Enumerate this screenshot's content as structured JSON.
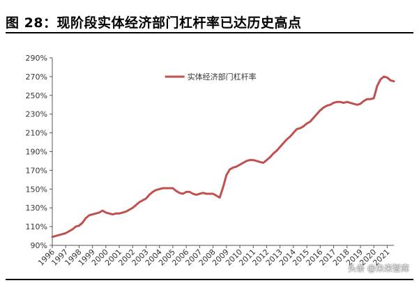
{
  "title": "图 28：现阶段实体经济部门杠杆率已达历史高点",
  "watermark": "头条 @未来智库",
  "chart_data": {
    "type": "line",
    "title": "图 28：现阶段实体经济部门杠杆率已达历史高点",
    "xlabel": "",
    "ylabel": "",
    "ylim": [
      90,
      290
    ],
    "yticks": [
      "90%",
      "110%",
      "130%",
      "150%",
      "170%",
      "190%",
      "210%",
      "230%",
      "250%",
      "270%",
      "290%"
    ],
    "yticks_values": [
      90,
      110,
      130,
      150,
      170,
      190,
      210,
      230,
      250,
      270,
      290
    ],
    "xticks": [
      "1996",
      "1997",
      "1998",
      "1999",
      "2000",
      "2001",
      "2002",
      "2003",
      "2004",
      "2005",
      "2006",
      "2007",
      "2008",
      "2009",
      "2010",
      "2011",
      "2012",
      "2013",
      "2014",
      "2015",
      "2016",
      "2017",
      "2018",
      "2019",
      "2020",
      "2021"
    ],
    "legend": {
      "position": "top-center"
    },
    "series": [
      {
        "name": "实体经济部门杠杆率",
        "color": "#C0504D",
        "x": [
          1996.0,
          1996.25,
          1996.5,
          1996.75,
          1997.0,
          1997.25,
          1997.5,
          1997.75,
          1998.0,
          1998.25,
          1998.5,
          1998.75,
          1999.0,
          1999.25,
          1999.5,
          1999.75,
          2000.0,
          2000.25,
          2000.5,
          2000.75,
          2001.0,
          2001.25,
          2001.5,
          2001.75,
          2002.0,
          2002.25,
          2002.5,
          2002.75,
          2003.0,
          2003.25,
          2003.5,
          2003.75,
          2004.0,
          2004.25,
          2004.5,
          2004.75,
          2005.0,
          2005.25,
          2005.5,
          2005.75,
          2006.0,
          2006.25,
          2006.5,
          2006.75,
          2007.0,
          2007.25,
          2007.5,
          2007.75,
          2008.0,
          2008.25,
          2008.5,
          2008.75,
          2009.0,
          2009.25,
          2009.5,
          2009.75,
          2010.0,
          2010.25,
          2010.5,
          2010.75,
          2011.0,
          2011.25,
          2011.5,
          2011.75,
          2012.0,
          2012.25,
          2012.5,
          2012.75,
          2013.0,
          2013.25,
          2013.5,
          2013.75,
          2014.0,
          2014.25,
          2014.5,
          2014.75,
          2015.0,
          2015.25,
          2015.5,
          2015.75,
          2016.0,
          2016.25,
          2016.5,
          2016.75,
          2017.0,
          2017.25,
          2017.5,
          2017.75,
          2018.0,
          2018.25,
          2018.5,
          2018.75,
          2019.0,
          2019.25,
          2019.5,
          2019.75,
          2020.0,
          2020.25,
          2020.5,
          2020.75,
          2021.0,
          2021.25,
          2021.5
        ],
        "values": [
          99,
          100,
          101,
          102,
          103,
          105,
          107,
          110,
          111,
          114,
          119,
          122,
          123,
          124,
          125,
          127,
          125,
          124,
          123,
          124,
          124,
          125,
          126,
          128,
          130,
          133,
          136,
          138,
          140,
          144,
          147,
          149,
          150,
          151,
          151,
          151,
          151,
          148,
          146,
          145,
          147,
          147,
          145,
          144,
          145,
          146,
          145,
          145,
          145,
          143,
          141,
          152,
          165,
          171,
          173,
          174,
          176,
          178,
          180,
          181,
          181,
          180,
          179,
          178,
          181,
          184,
          188,
          191,
          195,
          199,
          203,
          206,
          210,
          214,
          215,
          217,
          220,
          222,
          226,
          230,
          234,
          237,
          239,
          240,
          242,
          243,
          243,
          242,
          243,
          242,
          241,
          240,
          241,
          244,
          246,
          246,
          247,
          260,
          267,
          270,
          269,
          266,
          265
        ]
      }
    ]
  }
}
